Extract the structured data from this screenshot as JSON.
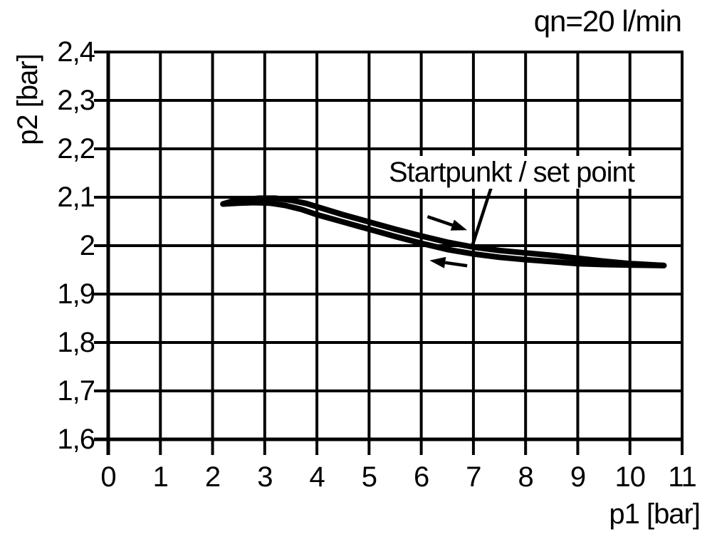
{
  "title": "qn=20 l/min",
  "chart_data": {
    "type": "line",
    "title": "qn=20 l/min",
    "xlabel": "p1 [bar]",
    "ylabel": "p2 [bar]",
    "xlim": [
      0,
      11
    ],
    "ylim": [
      1.6,
      2.4
    ],
    "grid": true,
    "x_ticks": [
      0,
      1,
      2,
      3,
      4,
      5,
      6,
      7,
      8,
      9,
      10,
      11
    ],
    "x_tick_labels": [
      "0",
      "1",
      "2",
      "3",
      "4",
      "5",
      "6",
      "7",
      "8",
      "9",
      "10",
      "11"
    ],
    "y_ticks": [
      2.4,
      2.3,
      2.2,
      2.1,
      2.0,
      1.9,
      1.8,
      1.7,
      1.6
    ],
    "y_tick_labels": [
      "2,4",
      "2,3",
      "2,2",
      "2,1",
      "2",
      "1,9",
      "1,8",
      "1,7",
      "1,6"
    ],
    "series": [
      {
        "name": "upper_branch",
        "points": [
          [
            2.2,
            2.086
          ],
          [
            2.35,
            2.091
          ],
          [
            2.6,
            2.095
          ],
          [
            2.9,
            2.098
          ],
          [
            3.2,
            2.098
          ],
          [
            3.5,
            2.094
          ],
          [
            3.8,
            2.087
          ],
          [
            4.1,
            2.077
          ],
          [
            4.5,
            2.064
          ],
          [
            5.0,
            2.049
          ],
          [
            5.5,
            2.034
          ],
          [
            6.0,
            2.02
          ],
          [
            6.5,
            2.007
          ],
          [
            7.0,
            1.997
          ],
          [
            7.5,
            1.99
          ],
          [
            8.0,
            1.985
          ],
          [
            8.5,
            1.98
          ],
          [
            9.0,
            1.974
          ],
          [
            9.5,
            1.968
          ],
          [
            10.0,
            1.963
          ],
          [
            10.65,
            1.959
          ]
        ]
      },
      {
        "name": "lower_branch",
        "points": [
          [
            2.2,
            2.086
          ],
          [
            2.5,
            2.088
          ],
          [
            2.8,
            2.089
          ],
          [
            3.1,
            2.088
          ],
          [
            3.4,
            2.083
          ],
          [
            3.7,
            2.075
          ],
          [
            4.0,
            2.064
          ],
          [
            4.5,
            2.049
          ],
          [
            5.0,
            2.034
          ],
          [
            5.5,
            2.019
          ],
          [
            6.0,
            2.005
          ],
          [
            6.5,
            1.992
          ],
          [
            7.0,
            1.983
          ],
          [
            7.5,
            1.976
          ],
          [
            8.0,
            1.971
          ],
          [
            8.5,
            1.967
          ],
          [
            9.0,
            1.963
          ],
          [
            9.5,
            1.961
          ],
          [
            10.0,
            1.96
          ],
          [
            10.65,
            1.959
          ]
        ]
      }
    ],
    "annotations": {
      "set_point_label": "Startpunkt / set point",
      "set_point": [
        7.0,
        2.0
      ],
      "leader_line": {
        "from": [
          7.34,
          2.12
        ],
        "to": [
          6.97,
          1.997
        ]
      },
      "arrows": [
        {
          "name": "forward-direction-arrow",
          "from": [
            6.12,
            2.06
          ],
          "to": [
            6.88,
            2.032
          ]
        },
        {
          "name": "return-direction-arrow",
          "from": [
            6.88,
            1.9585
          ],
          "to": [
            6.16,
            1.9695
          ]
        }
      ]
    },
    "colors": {
      "line": "#000000",
      "grid": "#000000",
      "background": "#ffffff"
    }
  }
}
